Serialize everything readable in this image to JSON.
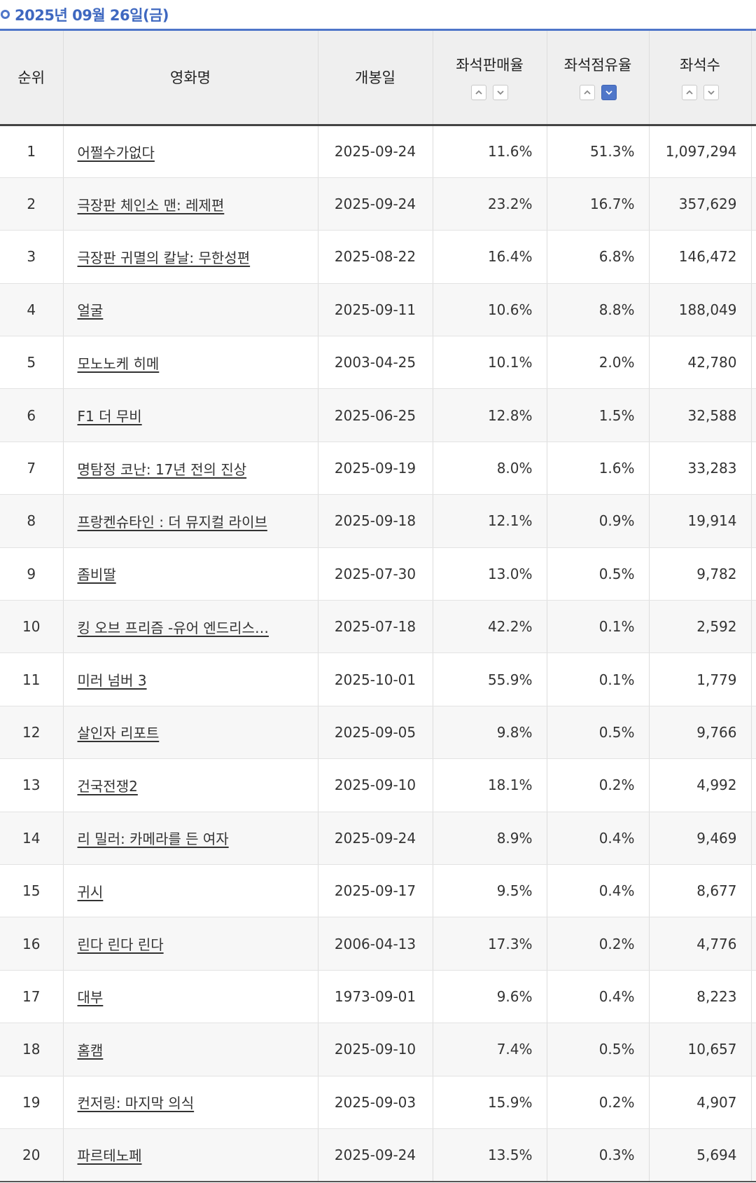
{
  "header": {
    "date": "2025년 09월 26일(금)"
  },
  "columns": {
    "rank": "순위",
    "title": "영화명",
    "open_date": "개봉일",
    "sales_rate": "좌석판매율",
    "occupancy_rate": "좌석점유율",
    "seats": "좌석수"
  },
  "sort": {
    "active_column": "occupancy_rate",
    "active_direction": "desc"
  },
  "rows": [
    {
      "rank": "1",
      "title": "어쩔수가없다",
      "open_date": "2025-09-24",
      "sales_rate": "11.6%",
      "occupancy_rate": "51.3%",
      "seats": "1,097,294"
    },
    {
      "rank": "2",
      "title": "극장판 체인소 맨: 레제편",
      "open_date": "2025-09-24",
      "sales_rate": "23.2%",
      "occupancy_rate": "16.7%",
      "seats": "357,629"
    },
    {
      "rank": "3",
      "title": "극장판 귀멸의 칼날: 무한성편",
      "open_date": "2025-08-22",
      "sales_rate": "16.4%",
      "occupancy_rate": "6.8%",
      "seats": "146,472"
    },
    {
      "rank": "4",
      "title": "얼굴",
      "open_date": "2025-09-11",
      "sales_rate": "10.6%",
      "occupancy_rate": "8.8%",
      "seats": "188,049"
    },
    {
      "rank": "5",
      "title": "모노노케 히메",
      "open_date": "2003-04-25",
      "sales_rate": "10.1%",
      "occupancy_rate": "2.0%",
      "seats": "42,780"
    },
    {
      "rank": "6",
      "title": "F1 더 무비",
      "open_date": "2025-06-25",
      "sales_rate": "12.8%",
      "occupancy_rate": "1.5%",
      "seats": "32,588"
    },
    {
      "rank": "7",
      "title": "명탐정 코난: 17년 전의 진상",
      "open_date": "2025-09-19",
      "sales_rate": "8.0%",
      "occupancy_rate": "1.6%",
      "seats": "33,283"
    },
    {
      "rank": "8",
      "title": "프랑켄슈타인 : 더 뮤지컬 라이브",
      "open_date": "2025-09-18",
      "sales_rate": "12.1%",
      "occupancy_rate": "0.9%",
      "seats": "19,914"
    },
    {
      "rank": "9",
      "title": "좀비딸",
      "open_date": "2025-07-30",
      "sales_rate": "13.0%",
      "occupancy_rate": "0.5%",
      "seats": "9,782"
    },
    {
      "rank": "10",
      "title": "킹 오브 프리즘 -유어 엔드리스…",
      "open_date": "2025-07-18",
      "sales_rate": "42.2%",
      "occupancy_rate": "0.1%",
      "seats": "2,592"
    },
    {
      "rank": "11",
      "title": "미러 넘버 3",
      "open_date": "2025-10-01",
      "sales_rate": "55.9%",
      "occupancy_rate": "0.1%",
      "seats": "1,779"
    },
    {
      "rank": "12",
      "title": "살인자 리포트",
      "open_date": "2025-09-05",
      "sales_rate": "9.8%",
      "occupancy_rate": "0.5%",
      "seats": "9,766"
    },
    {
      "rank": "13",
      "title": "건국전쟁2",
      "open_date": "2025-09-10",
      "sales_rate": "18.1%",
      "occupancy_rate": "0.2%",
      "seats": "4,992"
    },
    {
      "rank": "14",
      "title": "리 밀러: 카메라를 든 여자",
      "open_date": "2025-09-24",
      "sales_rate": "8.9%",
      "occupancy_rate": "0.4%",
      "seats": "9,469"
    },
    {
      "rank": "15",
      "title": "귀시",
      "open_date": "2025-09-17",
      "sales_rate": "9.5%",
      "occupancy_rate": "0.4%",
      "seats": "8,677"
    },
    {
      "rank": "16",
      "title": "린다 린다 린다",
      "open_date": "2006-04-13",
      "sales_rate": "17.3%",
      "occupancy_rate": "0.2%",
      "seats": "4,776"
    },
    {
      "rank": "17",
      "title": "대부",
      "open_date": "1973-09-01",
      "sales_rate": "9.6%",
      "occupancy_rate": "0.4%",
      "seats": "8,223"
    },
    {
      "rank": "18",
      "title": "홈캠",
      "open_date": "2025-09-10",
      "sales_rate": "7.4%",
      "occupancy_rate": "0.5%",
      "seats": "10,657"
    },
    {
      "rank": "19",
      "title": "컨저링: 마지막 의식",
      "open_date": "2025-09-03",
      "sales_rate": "15.9%",
      "occupancy_rate": "0.2%",
      "seats": "4,907"
    },
    {
      "rank": "20",
      "title": "파르테노페",
      "open_date": "2025-09-24",
      "sales_rate": "13.5%",
      "occupancy_rate": "0.3%",
      "seats": "5,694"
    }
  ]
}
